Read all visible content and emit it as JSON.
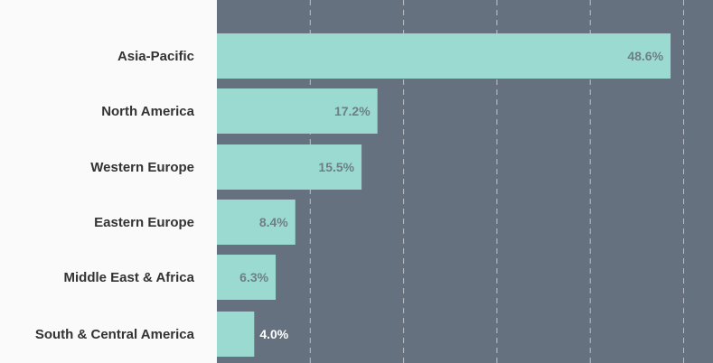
{
  "chart_data": {
    "type": "bar",
    "orientation": "horizontal",
    "categories": [
      "Asia-Pacific",
      "North America",
      "Western Europe",
      "Eastern Europe",
      "Middle East & Africa",
      "South & Central America"
    ],
    "values": [
      48.6,
      17.2,
      15.5,
      8.4,
      6.3,
      4.0
    ],
    "value_labels": [
      "48.6%",
      "17.2%",
      "15.5%",
      "8.4%",
      "6.3%",
      "4.0%"
    ],
    "title": "",
    "xlabel": "",
    "ylabel": "",
    "xlim": [
      0,
      50
    ],
    "grid": true,
    "legend": "none"
  },
  "colors": {
    "bar": "#9bdad0",
    "plot_background": "#66717f",
    "gridline": "#d6dadf",
    "label_panel": "#fafafa",
    "category_text": "#333333",
    "value_text_inside": "#6e7f84",
    "value_text_outside": "#ffffff"
  }
}
